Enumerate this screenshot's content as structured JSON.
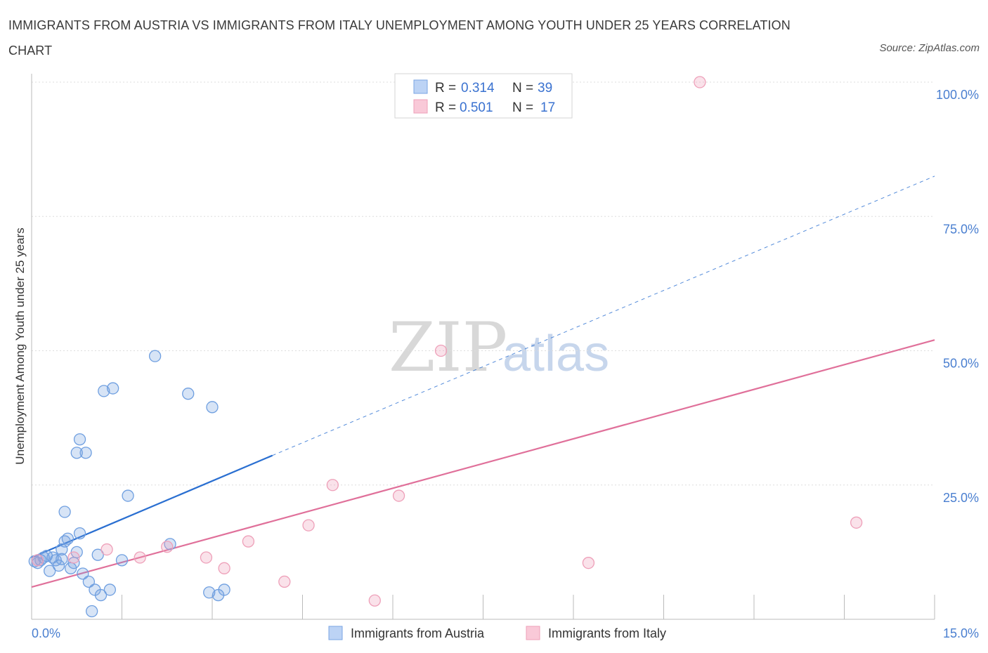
{
  "title": "IMMIGRANTS FROM AUSTRIA VS IMMIGRANTS FROM ITALY UNEMPLOYMENT AMONG YOUTH UNDER 25 YEARS CORRELATION CHART",
  "source": "Source: ZipAtlas.com",
  "watermark": {
    "zip": "ZIP",
    "atlas": "atlas"
  },
  "legend": {
    "rows": [
      {
        "r_label": "R = ",
        "r_value": "0.314",
        "n_label": "N = ",
        "n_value": "39"
      },
      {
        "r_label": "R = ",
        "r_value": "0.501",
        "n_label": "N = ",
        "n_value": "17"
      }
    ]
  },
  "chart_data": {
    "type": "scatter",
    "title": "IMMIGRANTS FROM AUSTRIA VS IMMIGRANTS FROM ITALY UNEMPLOYMENT AMONG YOUTH UNDER 25 YEARS CORRELATION CHART",
    "xlabel": "",
    "ylabel": "Unemployment Among Youth under 25 years",
    "xlim": [
      0,
      15
    ],
    "ylim": [
      0,
      100
    ],
    "x_tick_labels": [
      "0.0%",
      "15.0%"
    ],
    "y_tick_labels": [
      "100.0%",
      "75.0%",
      "50.0%",
      "25.0%"
    ],
    "y_ticks": [
      100,
      75,
      50,
      25
    ],
    "grid": true,
    "colors": {
      "austria": "#6f9fe0",
      "austria_line": "#2a6fd1",
      "italy": "#f0a0b8",
      "italy_line": "#e0709a"
    },
    "series": [
      {
        "name": "Immigrants from Austria",
        "R": 0.314,
        "N": 39,
        "trend": {
          "x0": 0,
          "y0": 11.5,
          "x1": 4.0,
          "y1": 30.5,
          "x_dash_end": 15,
          "y_dash_end": 82.5
        },
        "points": [
          [
            0.05,
            10.8
          ],
          [
            0.1,
            10.5
          ],
          [
            0.15,
            11.0
          ],
          [
            0.2,
            11.5
          ],
          [
            0.25,
            11.8
          ],
          [
            0.3,
            9.0
          ],
          [
            0.35,
            11.5
          ],
          [
            0.4,
            11.0
          ],
          [
            0.45,
            10.0
          ],
          [
            0.5,
            11.2
          ],
          [
            0.5,
            13.0
          ],
          [
            0.55,
            14.5
          ],
          [
            0.55,
            20.0
          ],
          [
            0.6,
            15.0
          ],
          [
            0.65,
            9.5
          ],
          [
            0.7,
            10.5
          ],
          [
            0.75,
            12.5
          ],
          [
            0.75,
            31.0
          ],
          [
            0.8,
            16.0
          ],
          [
            0.8,
            33.5
          ],
          [
            0.85,
            8.5
          ],
          [
            0.9,
            31.0
          ],
          [
            0.95,
            7.0
          ],
          [
            1.0,
            1.5
          ],
          [
            1.05,
            5.5
          ],
          [
            1.1,
            12.0
          ],
          [
            1.15,
            4.5
          ],
          [
            1.2,
            42.5
          ],
          [
            1.3,
            5.5
          ],
          [
            1.35,
            43.0
          ],
          [
            1.5,
            11.0
          ],
          [
            1.6,
            23.0
          ],
          [
            2.05,
            49.0
          ],
          [
            2.3,
            14.0
          ],
          [
            2.6,
            42.0
          ],
          [
            2.95,
            5.0
          ],
          [
            3.0,
            39.5
          ],
          [
            3.1,
            4.5
          ],
          [
            3.2,
            5.5
          ]
        ]
      },
      {
        "name": "Immigrants from Italy",
        "R": 0.501,
        "N": 17,
        "trend": {
          "x0": 0,
          "y0": 6.0,
          "x1": 15,
          "y1": 52.0
        },
        "points": [
          [
            0.1,
            11.0
          ],
          [
            0.7,
            11.5
          ],
          [
            1.25,
            13.0
          ],
          [
            1.8,
            11.5
          ],
          [
            2.25,
            13.5
          ],
          [
            2.9,
            11.5
          ],
          [
            3.2,
            9.5
          ],
          [
            3.6,
            14.5
          ],
          [
            4.2,
            7.0
          ],
          [
            4.6,
            17.5
          ],
          [
            5.0,
            25.0
          ],
          [
            5.7,
            3.5
          ],
          [
            6.1,
            23.0
          ],
          [
            6.8,
            50.0
          ],
          [
            9.25,
            10.5
          ],
          [
            11.1,
            100.0
          ],
          [
            13.7,
            18.0
          ]
        ]
      }
    ]
  },
  "bottom_legend": {
    "items": [
      {
        "label": "Immigrants from Austria"
      },
      {
        "label": "Immigrants from Italy"
      }
    ]
  }
}
